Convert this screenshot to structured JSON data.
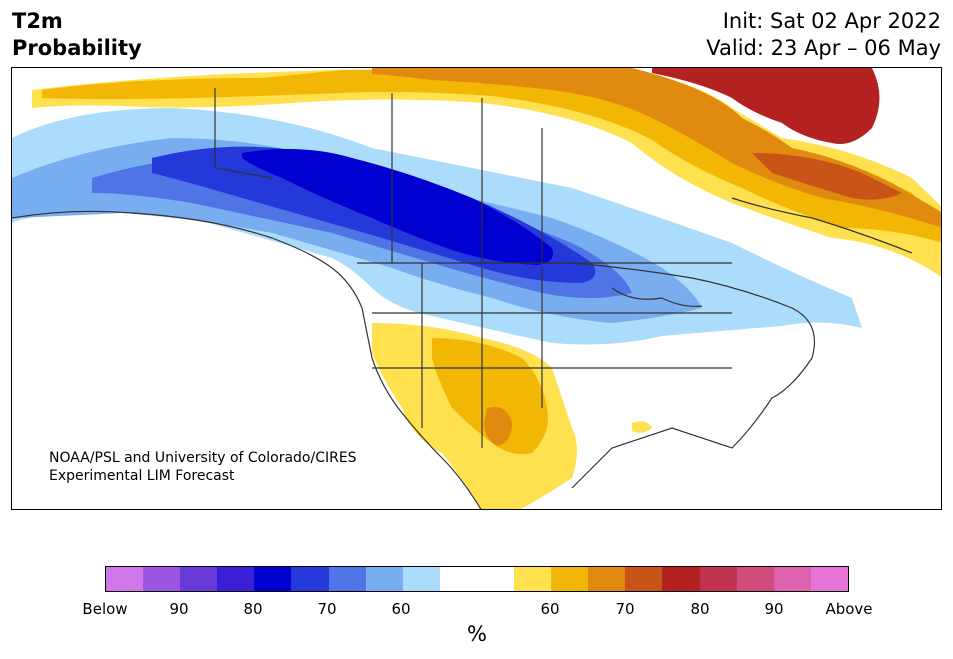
{
  "header": {
    "title_line1": "T2m",
    "title_line2": "Probability",
    "init": "Init: Sat 02 Apr 2022",
    "valid": "Valid: 23 Apr – 06 May"
  },
  "credit": {
    "line1": "NOAA/PSL and University of Colorado/CIRES",
    "line2": "Experimental LIM Forecast"
  },
  "colorbar": {
    "colors": [
      "#d277e9",
      "#9b55e2",
      "#6a3ad8",
      "#3a1fd6",
      "#0000d0",
      "#2538da",
      "#4f74e5",
      "#78aef0",
      "#acdcfb",
      "#ffffff",
      "#ffffff",
      "#ffe04e",
      "#f2b705",
      "#e08a10",
      "#c95418",
      "#b42121",
      "#c0344f",
      "#cf4c7d",
      "#dc62ad",
      "#e673d7"
    ],
    "ticks": [
      "Below",
      "90",
      "80",
      "70",
      "60",
      "60",
      "70",
      "80",
      "90",
      "Above"
    ],
    "unit": "%"
  },
  "map": {
    "region": "North America",
    "land_color": "#ffffff",
    "border_color": "#333333"
  }
}
